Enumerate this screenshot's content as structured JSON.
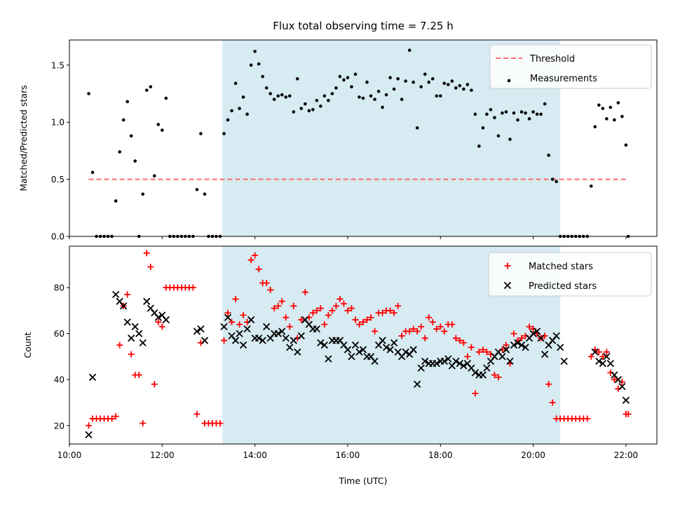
{
  "figure": {
    "title": "Flux total observing time = 7.25 h",
    "colors": {
      "span": "#add8e6",
      "threshold": "#ff6b6b",
      "measurements": "#000000",
      "matched": "#ff0000",
      "predicted": "#000000"
    }
  },
  "chart_data": [
    {
      "type": "scatter",
      "panel": "top",
      "xlabel": "",
      "ylabel": "Matched/Predicted stars",
      "xlim": [
        "10:00",
        "22:40"
      ],
      "ylim": [
        0,
        1.72
      ],
      "yticks": [
        0.0,
        0.5,
        1.0,
        1.5
      ],
      "ytick_labels": [
        "0.0",
        "0.5",
        "1.0",
        "1.5"
      ],
      "shaded_span": [
        "13:18",
        "20:35"
      ],
      "legend": {
        "location": "top-right",
        "entries": [
          "Threshold",
          "Measurements"
        ]
      },
      "series": [
        {
          "name": "Threshold",
          "kind": "line",
          "style": "dashed",
          "x": [
            "10:25",
            "22:00"
          ],
          "y": [
            0.5,
            0.5
          ]
        },
        {
          "name": "Measurements",
          "kind": "points",
          "x": [
            "10:25",
            "10:30",
            "10:35",
            "10:40",
            "10:45",
            "10:50",
            "10:55",
            "11:00",
            "11:05",
            "11:10",
            "11:15",
            "11:20",
            "11:25",
            "11:30",
            "11:35",
            "11:40",
            "11:45",
            "11:50",
            "11:55",
            "12:00",
            "12:05",
            "12:10",
            "12:15",
            "12:20",
            "12:25",
            "12:30",
            "12:35",
            "12:40",
            "12:45",
            "12:50",
            "12:55",
            "13:00",
            "13:05",
            "13:10",
            "13:15",
            "13:20",
            "13:25",
            "13:30",
            "13:35",
            "13:40",
            "13:45",
            "13:50",
            "13:55",
            "14:00",
            "14:05",
            "14:10",
            "14:15",
            "14:20",
            "14:25",
            "14:30",
            "14:35",
            "14:40",
            "14:45",
            "14:50",
            "14:55",
            "15:00",
            "15:05",
            "15:10",
            "15:15",
            "15:20",
            "15:25",
            "15:30",
            "15:35",
            "15:40",
            "15:45",
            "15:50",
            "15:55",
            "16:00",
            "16:05",
            "16:10",
            "16:15",
            "16:20",
            "16:25",
            "16:30",
            "16:35",
            "16:40",
            "16:45",
            "16:50",
            "16:55",
            "17:00",
            "17:05",
            "17:10",
            "17:15",
            "17:20",
            "17:25",
            "17:30",
            "17:35",
            "17:40",
            "17:45",
            "17:50",
            "17:55",
            "18:00",
            "18:05",
            "18:10",
            "18:15",
            "18:20",
            "18:25",
            "18:30",
            "18:35",
            "18:40",
            "18:45",
            "18:50",
            "18:55",
            "19:00",
            "19:05",
            "19:10",
            "19:15",
            "19:20",
            "19:25",
            "19:30",
            "19:35",
            "19:40",
            "19:45",
            "19:50",
            "19:55",
            "20:00",
            "20:05",
            "20:10",
            "20:15",
            "20:20",
            "20:25",
            "20:30",
            "20:35",
            "20:40",
            "20:45",
            "20:50",
            "20:55",
            "21:00",
            "21:05",
            "21:10",
            "21:15",
            "21:20",
            "21:25",
            "21:30",
            "21:35",
            "21:40",
            "21:45",
            "21:50",
            "21:55",
            "22:00",
            "22:03"
          ],
          "y": [
            1.25,
            0.56,
            0.0,
            0.0,
            0.0,
            0.0,
            0.0,
            0.31,
            0.74,
            1.02,
            1.18,
            0.88,
            0.66,
            0.0,
            0.37,
            1.28,
            1.31,
            0.53,
            0.98,
            0.93,
            1.21,
            0.0,
            0.0,
            0.0,
            0.0,
            0.0,
            0.0,
            0.0,
            0.41,
            0.9,
            0.37,
            0.0,
            0.0,
            0.0,
            0.0,
            0.9,
            1.02,
            1.1,
            1.34,
            1.12,
            1.22,
            1.07,
            1.5,
            1.62,
            1.51,
            1.4,
            1.3,
            1.25,
            1.2,
            1.23,
            1.24,
            1.22,
            1.23,
            1.09,
            1.38,
            1.12,
            1.16,
            1.1,
            1.11,
            1.19,
            1.14,
            1.23,
            1.19,
            1.25,
            1.3,
            1.4,
            1.37,
            1.39,
            1.31,
            1.42,
            1.22,
            1.21,
            1.35,
            1.23,
            1.2,
            1.27,
            1.13,
            1.24,
            1.39,
            1.29,
            1.38,
            1.2,
            1.36,
            1.63,
            1.35,
            0.95,
            1.31,
            1.42,
            1.35,
            1.38,
            1.23,
            1.23,
            1.34,
            1.33,
            1.36,
            1.3,
            1.32,
            1.29,
            1.33,
            1.28,
            1.07,
            0.79,
            0.95,
            1.07,
            1.11,
            1.04,
            0.88,
            1.08,
            1.09,
            0.85,
            1.08,
            1.02,
            1.09,
            1.08,
            1.03,
            1.09,
            1.07,
            1.07,
            1.16,
            0.71,
            0.5,
            0.48,
            0.0,
            0.0,
            0.0,
            0.0,
            0.0,
            0.0,
            0.0,
            0.0,
            0.44,
            0.96,
            1.15,
            1.12,
            1.03,
            1.13,
            1.02,
            1.17,
            1.05,
            0.8,
            0.0
          ]
        }
      ]
    },
    {
      "type": "scatter",
      "panel": "bottom",
      "xlabel": "Time (UTC)",
      "ylabel": "Count",
      "xlim": [
        "10:00",
        "22:40"
      ],
      "ylim": [
        12,
        98
      ],
      "xticks": [
        "10:00",
        "12:00",
        "14:00",
        "16:00",
        "18:00",
        "20:00",
        "22:00"
      ],
      "yticks": [
        20,
        40,
        60,
        80
      ],
      "ytick_labels": [
        "20",
        "40",
        "60",
        "80"
      ],
      "shaded_span": [
        "13:18",
        "20:35"
      ],
      "legend": {
        "location": "top-right",
        "entries": [
          "Matched stars",
          "Predicted stars"
        ]
      },
      "series": [
        {
          "name": "Matched stars",
          "kind": "plus",
          "x": [
            "10:25",
            "10:30",
            "10:35",
            "10:40",
            "10:45",
            "10:50",
            "10:55",
            "11:00",
            "11:05",
            "11:10",
            "11:15",
            "11:20",
            "11:25",
            "11:30",
            "11:35",
            "11:40",
            "11:45",
            "11:50",
            "11:55",
            "12:00",
            "12:05",
            "12:10",
            "12:15",
            "12:20",
            "12:25",
            "12:30",
            "12:35",
            "12:40",
            "12:45",
            "12:50",
            "12:55",
            "13:00",
            "13:05",
            "13:10",
            "13:15",
            "13:20",
            "13:25",
            "13:30",
            "13:35",
            "13:40",
            "13:45",
            "13:50",
            "13:55",
            "14:00",
            "14:05",
            "14:10",
            "14:15",
            "14:20",
            "14:25",
            "14:30",
            "14:35",
            "14:40",
            "14:45",
            "14:50",
            "14:55",
            "15:00",
            "15:05",
            "15:10",
            "15:15",
            "15:20",
            "15:25",
            "15:30",
            "15:35",
            "15:40",
            "15:45",
            "15:50",
            "15:55",
            "16:00",
            "16:05",
            "16:10",
            "16:15",
            "16:20",
            "16:25",
            "16:30",
            "16:35",
            "16:40",
            "16:45",
            "16:50",
            "16:55",
            "17:00",
            "17:05",
            "17:10",
            "17:15",
            "17:20",
            "17:25",
            "17:30",
            "17:35",
            "17:40",
            "17:45",
            "17:50",
            "17:55",
            "18:00",
            "18:05",
            "18:10",
            "18:15",
            "18:20",
            "18:25",
            "18:30",
            "18:35",
            "18:40",
            "18:45",
            "18:50",
            "18:55",
            "19:00",
            "19:05",
            "19:10",
            "19:15",
            "19:20",
            "19:25",
            "19:30",
            "19:35",
            "19:40",
            "19:45",
            "19:50",
            "19:55",
            "20:00",
            "20:05",
            "20:10",
            "20:15",
            "20:20",
            "20:25",
            "20:30",
            "20:35",
            "20:40",
            "20:45",
            "20:50",
            "20:55",
            "21:00",
            "21:05",
            "21:10",
            "21:15",
            "21:20",
            "21:25",
            "21:30",
            "21:35",
            "21:40",
            "21:45",
            "21:50",
            "21:55",
            "22:00",
            "22:03"
          ],
          "y": [
            20,
            23,
            23,
            23,
            23,
            23,
            23,
            24,
            55,
            72,
            77,
            51,
            42,
            42,
            21,
            95,
            89,
            38,
            65,
            63,
            80,
            80,
            80,
            80,
            80,
            80,
            80,
            80,
            25,
            56,
            21,
            21,
            21,
            21,
            21,
            57,
            69,
            65,
            75,
            64,
            68,
            65,
            92,
            94,
            88,
            82,
            82,
            79,
            71,
            72,
            74,
            67,
            63,
            72,
            58,
            66,
            78,
            67,
            69,
            70,
            71,
            64,
            68,
            70,
            72,
            75,
            73,
            70,
            71,
            66,
            64,
            65,
            66,
            67,
            61,
            69,
            69,
            70,
            70,
            69,
            72,
            59,
            61,
            61,
            62,
            61,
            63,
            58,
            67,
            65,
            62,
            63,
            61,
            64,
            64,
            58,
            57,
            56,
            50,
            54,
            34,
            52,
            53,
            52,
            51,
            42,
            41,
            53,
            55,
            47,
            60,
            57,
            58,
            59,
            63,
            62,
            60,
            58,
            59,
            38,
            30,
            23,
            23,
            23,
            23,
            23,
            23,
            23,
            23,
            23,
            50,
            53,
            52,
            50,
            52,
            43,
            40,
            36,
            39,
            25,
            25
          ]
        },
        {
          "name": "Predicted stars",
          "kind": "x",
          "x": [
            "10:25",
            "10:30",
            "11:00",
            "11:05",
            "11:10",
            "11:15",
            "11:20",
            "11:25",
            "11:30",
            "11:35",
            "11:40",
            "11:45",
            "11:50",
            "11:55",
            "12:00",
            "12:05",
            "12:45",
            "12:50",
            "12:55",
            "13:20",
            "13:25",
            "13:30",
            "13:35",
            "13:40",
            "13:45",
            "13:50",
            "13:55",
            "14:00",
            "14:05",
            "14:10",
            "14:15",
            "14:20",
            "14:25",
            "14:30",
            "14:35",
            "14:40",
            "14:45",
            "14:50",
            "14:55",
            "15:00",
            "15:05",
            "15:10",
            "15:15",
            "15:20",
            "15:25",
            "15:30",
            "15:35",
            "15:40",
            "15:45",
            "15:50",
            "15:55",
            "16:00",
            "16:05",
            "16:10",
            "16:15",
            "16:20",
            "16:25",
            "16:30",
            "16:35",
            "16:40",
            "16:45",
            "16:50",
            "16:55",
            "17:00",
            "17:05",
            "17:10",
            "17:15",
            "17:20",
            "17:25",
            "17:30",
            "17:35",
            "17:40",
            "17:45",
            "17:50",
            "17:55",
            "18:00",
            "18:05",
            "18:10",
            "18:15",
            "18:20",
            "18:25",
            "18:30",
            "18:35",
            "18:40",
            "18:45",
            "18:50",
            "18:55",
            "19:00",
            "19:05",
            "19:10",
            "19:15",
            "19:20",
            "19:25",
            "19:30",
            "19:35",
            "19:40",
            "19:45",
            "19:50",
            "19:55",
            "20:00",
            "20:05",
            "20:10",
            "20:15",
            "20:20",
            "20:25",
            "20:30",
            "20:35",
            "20:40",
            "21:20",
            "21:25",
            "21:30",
            "21:35",
            "21:40",
            "21:45",
            "21:50",
            "21:55",
            "22:00"
          ],
          "y": [
            16,
            41,
            77,
            74,
            72,
            65,
            58,
            63,
            60,
            56,
            74,
            71,
            69,
            67,
            68,
            66,
            61,
            62,
            57,
            63,
            67,
            59,
            57,
            60,
            55,
            62,
            66,
            58,
            58,
            57,
            63,
            58,
            60,
            60,
            61,
            58,
            54,
            57,
            52,
            59,
            66,
            64,
            62,
            62,
            56,
            55,
            49,
            57,
            57,
            57,
            55,
            53,
            50,
            55,
            52,
            53,
            50,
            50,
            48,
            55,
            57,
            54,
            53,
            56,
            52,
            50,
            52,
            51,
            53,
            38,
            45,
            48,
            47,
            47,
            47,
            48,
            48,
            49,
            46,
            48,
            47,
            46,
            47,
            45,
            43,
            42,
            42,
            45,
            48,
            50,
            52,
            50,
            53,
            48,
            55,
            56,
            55,
            54,
            58,
            60,
            61,
            58,
            51,
            55,
            57,
            59,
            54,
            48,
            52,
            48,
            47,
            50,
            47,
            42,
            40,
            37,
            31
          ]
        }
      ]
    }
  ]
}
